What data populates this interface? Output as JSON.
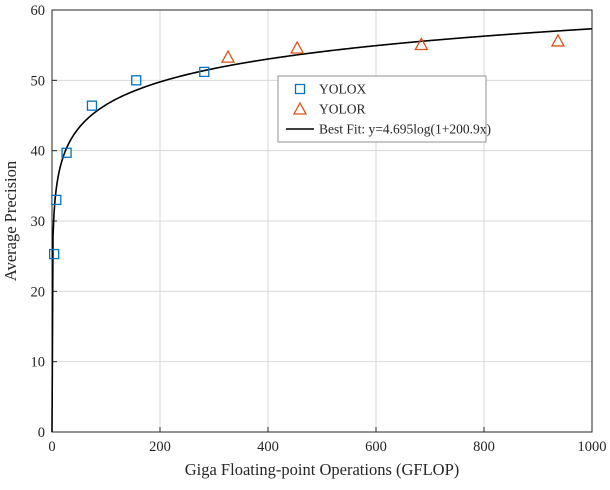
{
  "chart_data": {
    "type": "scatter",
    "title": "",
    "xlabel": "Giga Floating-point Operations (GFLOP)",
    "ylabel": "Average Precision",
    "xlim": [
      0,
      1000
    ],
    "ylim": [
      0,
      60
    ],
    "xticks": [
      0,
      200,
      400,
      600,
      800,
      1000
    ],
    "yticks": [
      0,
      10,
      20,
      30,
      40,
      50,
      60
    ],
    "grid": true,
    "legend_position": "upper-center",
    "colors": {
      "yolox": "#0072BD",
      "yolor": "#D95319",
      "fit_line": "#000000",
      "grid_line": "#dadada",
      "axis": "#262626"
    },
    "series": [
      {
        "name": "YOLOX",
        "marker": "square",
        "color": "#0072BD",
        "points": [
          [
            4,
            25.3
          ],
          [
            8,
            33.0
          ],
          [
            27,
            39.7
          ],
          [
            74,
            46.4
          ],
          [
            156,
            50.0
          ],
          [
            282,
            51.2
          ]
        ]
      },
      {
        "name": "YOLOR",
        "marker": "triangle",
        "color": "#D95319",
        "points": [
          [
            326,
            53.3
          ],
          [
            454,
            54.6
          ],
          [
            684,
            55.1
          ],
          [
            937,
            55.6
          ]
        ]
      },
      {
        "name": "Best Fit: y=4.695log(1+200.9x)",
        "marker": "line",
        "color": "#000000",
        "fit": {
          "a": 4.695,
          "b": 200.9,
          "formula": "y = a*ln(1 + b*x)"
        }
      }
    ]
  }
}
